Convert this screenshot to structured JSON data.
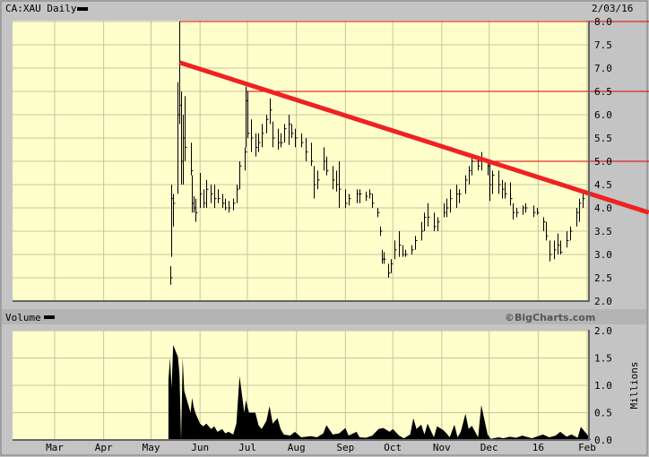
{
  "header": {
    "symbol_title": "CA:XAU Daily",
    "date": "2/03/16"
  },
  "volume_header": {
    "label": "Volume",
    "brand": "©BigCharts.com"
  },
  "colors": {
    "plot_bg": "#ffffcc",
    "grid": "#c8c49a",
    "bars": "#000000",
    "trendline": "#ee2222",
    "level_lines": "#dd0000",
    "panel_bg": "#c4c4c4",
    "band_bg": "#b4b4b4"
  },
  "chart_data": [
    {
      "type": "ohlc-bar",
      "title": "CA:XAU Daily",
      "x_axis": {
        "type": "date",
        "range": [
          "2015-02-03",
          "2016-02-03"
        ],
        "tick_labels": [
          {
            "date": "2015-03-01",
            "label": "Mar"
          },
          {
            "date": "2015-04-01",
            "label": "Apr"
          },
          {
            "date": "2015-05-01",
            "label": "May"
          },
          {
            "date": "2015-06-01",
            "label": "Jun"
          },
          {
            "date": "2015-07-01",
            "label": "Jul"
          },
          {
            "date": "2015-08-01",
            "label": "Aug"
          },
          {
            "date": "2015-09-01",
            "label": "Sep"
          },
          {
            "date": "2015-10-01",
            "label": "Oct"
          },
          {
            "date": "2015-11-01",
            "label": "Nov"
          },
          {
            "date": "2015-12-01",
            "label": "Dec"
          },
          {
            "date": "2016-01-01",
            "label": "16"
          },
          {
            "date": "2016-02-01",
            "label": "Feb"
          }
        ]
      },
      "y_axis": {
        "range": [
          2.0,
          8.0
        ],
        "ticks": [
          "2.0",
          "2.5",
          "3.0",
          "3.5",
          "4.0",
          "4.5",
          "5.0",
          "5.5",
          "6.0",
          "6.5",
          "7.0",
          "7.5",
          "8.0"
        ],
        "position": "right"
      },
      "grid": true,
      "bar_fields": [
        "date",
        "high",
        "low",
        "close"
      ],
      "bars": [
        [
          "2015-05-13",
          2.75,
          2.35,
          2.5
        ],
        [
          "2015-05-14",
          4.5,
          2.95,
          4.2
        ],
        [
          "2015-05-15",
          4.3,
          3.6,
          4.1
        ],
        [
          "2015-05-18",
          6.7,
          4.3,
          6.0
        ],
        [
          "2015-05-19",
          8.0,
          5.8,
          6.2
        ],
        [
          "2015-05-20",
          6.5,
          4.5,
          5.0
        ],
        [
          "2015-05-21",
          6.0,
          4.5,
          5.5
        ],
        [
          "2015-05-22",
          6.4,
          5.0,
          5.3
        ],
        [
          "2015-05-26",
          5.4,
          4.7,
          4.8
        ],
        [
          "2015-05-27",
          4.7,
          3.9,
          4.1
        ],
        [
          "2015-05-28",
          4.25,
          3.9,
          4.0
        ],
        [
          "2015-05-29",
          4.2,
          3.7,
          3.9
        ],
        [
          "2015-06-01",
          4.75,
          4.0,
          4.3
        ],
        [
          "2015-06-03",
          4.4,
          4.0,
          4.1
        ],
        [
          "2015-06-05",
          4.6,
          4.0,
          4.4
        ],
        [
          "2015-06-08",
          4.5,
          4.1,
          4.3
        ],
        [
          "2015-06-10",
          4.5,
          4.0,
          4.2
        ],
        [
          "2015-06-12",
          4.4,
          4.1,
          4.2
        ],
        [
          "2015-06-15",
          4.3,
          4.0,
          4.1
        ],
        [
          "2015-06-17",
          4.2,
          3.95,
          4.0
        ],
        [
          "2015-06-19",
          4.15,
          3.9,
          4.0
        ],
        [
          "2015-06-22",
          4.2,
          3.95,
          4.1
        ],
        [
          "2015-06-24",
          4.5,
          4.1,
          4.4
        ],
        [
          "2015-06-26",
          5.0,
          4.4,
          4.9
        ],
        [
          "2015-06-29",
          5.3,
          4.8,
          5.2
        ],
        [
          "2015-06-30",
          6.6,
          5.3,
          6.3
        ],
        [
          "2015-07-01",
          6.5,
          5.5,
          5.6
        ],
        [
          "2015-07-03",
          5.9,
          5.2,
          5.5
        ],
        [
          "2015-07-06",
          5.6,
          5.1,
          5.3
        ],
        [
          "2015-07-08",
          5.6,
          5.2,
          5.4
        ],
        [
          "2015-07-10",
          5.8,
          5.3,
          5.6
        ],
        [
          "2015-07-13",
          6.0,
          5.6,
          5.9
        ],
        [
          "2015-07-15",
          6.35,
          5.8,
          6.1
        ],
        [
          "2015-07-17",
          5.85,
          5.3,
          5.5
        ],
        [
          "2015-07-20",
          5.7,
          5.25,
          5.4
        ],
        [
          "2015-07-22",
          5.6,
          5.3,
          5.4
        ],
        [
          "2015-07-24",
          5.8,
          5.4,
          5.7
        ],
        [
          "2015-07-27",
          6.0,
          5.35,
          5.8
        ],
        [
          "2015-07-29",
          5.8,
          5.5,
          5.6
        ],
        [
          "2015-07-31",
          5.7,
          5.3,
          5.5
        ],
        [
          "2015-08-04",
          5.6,
          5.3,
          5.4
        ],
        [
          "2015-08-07",
          5.5,
          5.0,
          5.2
        ],
        [
          "2015-08-10",
          5.4,
          4.9,
          5.0
        ],
        [
          "2015-08-12",
          4.9,
          4.2,
          4.5
        ],
        [
          "2015-08-14",
          4.8,
          4.4,
          4.6
        ],
        [
          "2015-08-18",
          5.3,
          4.8,
          5.0
        ],
        [
          "2015-08-20",
          5.1,
          4.7,
          4.8
        ],
        [
          "2015-08-24",
          4.9,
          4.4,
          4.6
        ],
        [
          "2015-08-26",
          4.8,
          4.35,
          4.5
        ],
        [
          "2015-08-28",
          5.0,
          4.0,
          4.4
        ],
        [
          "2015-09-01",
          4.4,
          4.0,
          4.1
        ],
        [
          "2015-09-03",
          4.3,
          4.05,
          4.2
        ],
        [
          "2015-09-08",
          4.4,
          4.1,
          4.3
        ],
        [
          "2015-09-10",
          4.4,
          4.1,
          4.3
        ],
        [
          "2015-09-14",
          4.35,
          4.15,
          4.25
        ],
        [
          "2015-09-16",
          4.4,
          4.2,
          4.3
        ],
        [
          "2015-09-18",
          4.3,
          4.0,
          4.1
        ],
        [
          "2015-09-21",
          4.0,
          3.8,
          3.9
        ],
        [
          "2015-09-23",
          3.6,
          3.4,
          3.5
        ],
        [
          "2015-09-24",
          3.1,
          2.8,
          2.9
        ],
        [
          "2015-09-25",
          3.05,
          2.8,
          2.9
        ],
        [
          "2015-09-28",
          2.8,
          2.5,
          2.6
        ],
        [
          "2015-09-30",
          2.9,
          2.6,
          2.8
        ],
        [
          "2015-10-02",
          3.3,
          2.9,
          3.1
        ],
        [
          "2015-10-05",
          3.5,
          2.95,
          3.2
        ],
        [
          "2015-10-07",
          3.2,
          2.95,
          3.0
        ],
        [
          "2015-10-09",
          3.1,
          2.95,
          3.0
        ],
        [
          "2015-10-13",
          3.2,
          3.0,
          3.1
        ],
        [
          "2015-10-15",
          3.4,
          3.1,
          3.3
        ],
        [
          "2015-10-19",
          3.7,
          3.3,
          3.5
        ],
        [
          "2015-10-21",
          3.9,
          3.5,
          3.8
        ],
        [
          "2015-10-23",
          4.1,
          3.6,
          3.8
        ],
        [
          "2015-10-27",
          3.9,
          3.5,
          3.6
        ],
        [
          "2015-10-29",
          3.8,
          3.5,
          3.7
        ],
        [
          "2015-11-02",
          4.1,
          3.8,
          3.9
        ],
        [
          "2015-11-04",
          4.2,
          3.8,
          4.0
        ],
        [
          "2015-11-06",
          4.4,
          3.9,
          4.2
        ],
        [
          "2015-11-10",
          4.5,
          4.0,
          4.3
        ],
        [
          "2015-11-12",
          4.4,
          4.1,
          4.3
        ],
        [
          "2015-11-16",
          4.7,
          4.3,
          4.6
        ],
        [
          "2015-11-18",
          4.9,
          4.5,
          4.8
        ],
        [
          "2015-11-20",
          5.15,
          4.7,
          5.0
        ],
        [
          "2015-11-24",
          5.1,
          4.8,
          4.9
        ],
        [
          "2015-11-26",
          5.2,
          4.8,
          5.0
        ],
        [
          "2015-11-30",
          5.0,
          4.7,
          4.9
        ],
        [
          "2015-12-01",
          4.95,
          4.15,
          4.5
        ],
        [
          "2015-12-03",
          4.8,
          4.3,
          4.7
        ],
        [
          "2015-12-07",
          4.8,
          4.3,
          4.5
        ],
        [
          "2015-12-09",
          4.6,
          4.2,
          4.4
        ],
        [
          "2015-12-11",
          4.55,
          4.2,
          4.3
        ],
        [
          "2015-12-14",
          4.55,
          4.05,
          4.2
        ],
        [
          "2015-12-16",
          4.1,
          3.75,
          3.9
        ],
        [
          "2015-12-18",
          4.0,
          3.8,
          3.9
        ],
        [
          "2015-12-22",
          4.05,
          3.85,
          4.0
        ],
        [
          "2015-12-24",
          4.1,
          3.9,
          4.0
        ],
        [
          "2015-12-29",
          4.05,
          3.8,
          3.9
        ],
        [
          "2015-12-31",
          4.0,
          3.85,
          3.9
        ],
        [
          "2016-01-04",
          3.8,
          3.5,
          3.7
        ],
        [
          "2016-01-06",
          3.7,
          3.3,
          3.4
        ],
        [
          "2016-01-08",
          3.3,
          2.85,
          3.0
        ],
        [
          "2016-01-11",
          3.3,
          2.9,
          3.1
        ],
        [
          "2016-01-13",
          3.45,
          3.0,
          3.2
        ],
        [
          "2016-01-15",
          3.3,
          3.0,
          3.05
        ],
        [
          "2016-01-19",
          3.5,
          3.15,
          3.3
        ],
        [
          "2016-01-21",
          3.6,
          3.3,
          3.5
        ],
        [
          "2016-01-25",
          4.0,
          3.6,
          3.9
        ],
        [
          "2016-01-27",
          4.2,
          3.7,
          4.1
        ],
        [
          "2016-01-29",
          4.3,
          4.0,
          4.2
        ],
        [
          "2016-02-02",
          4.35,
          4.1,
          4.3
        ]
      ],
      "annotations": {
        "trendline": {
          "from": [
            "2015-05-19",
            7.12
          ],
          "to": [
            "2016-03-11",
            3.9
          ]
        },
        "horizontal_levels": [
          {
            "value": 8.0,
            "from": "2015-05-19"
          },
          {
            "value": 6.5,
            "from": "2015-06-30"
          },
          {
            "value": 5.0,
            "from": "2015-11-21"
          }
        ]
      }
    },
    {
      "type": "area",
      "title": "Volume",
      "y_axis": {
        "range": [
          0.0,
          2.0
        ],
        "ticks": [
          "0.0",
          "0.5",
          "1.0",
          "1.5",
          "2.0"
        ],
        "label": "Millions",
        "position": "right"
      },
      "grid": true,
      "point_fields": [
        "date",
        "millions"
      ],
      "points": [
        [
          "2015-05-12",
          1.1
        ],
        [
          "2015-05-13",
          1.5
        ],
        [
          "2015-05-14",
          0.95
        ],
        [
          "2015-05-15",
          1.74
        ],
        [
          "2015-05-18",
          1.52
        ],
        [
          "2015-05-19",
          1.2
        ],
        [
          "2015-05-20",
          0.0
        ],
        [
          "2015-05-21",
          1.5
        ],
        [
          "2015-05-22",
          0.9
        ],
        [
          "2015-05-26",
          0.5
        ],
        [
          "2015-05-27",
          0.77
        ],
        [
          "2015-05-28",
          0.6
        ],
        [
          "2015-05-29",
          0.5
        ],
        [
          "2015-06-01",
          0.3
        ],
        [
          "2015-06-03",
          0.25
        ],
        [
          "2015-06-05",
          0.3
        ],
        [
          "2015-06-08",
          0.2
        ],
        [
          "2015-06-10",
          0.25
        ],
        [
          "2015-06-12",
          0.15
        ],
        [
          "2015-06-15",
          0.2
        ],
        [
          "2015-06-17",
          0.12
        ],
        [
          "2015-06-19",
          0.15
        ],
        [
          "2015-06-22",
          0.1
        ],
        [
          "2015-06-24",
          0.3
        ],
        [
          "2015-06-26",
          1.17
        ],
        [
          "2015-06-29",
          0.5
        ],
        [
          "2015-06-30",
          0.73
        ],
        [
          "2015-07-02",
          0.5
        ],
        [
          "2015-07-06",
          0.5
        ],
        [
          "2015-07-08",
          0.27
        ],
        [
          "2015-07-10",
          0.2
        ],
        [
          "2015-07-13",
          0.35
        ],
        [
          "2015-07-15",
          0.62
        ],
        [
          "2015-07-17",
          0.3
        ],
        [
          "2015-07-20",
          0.4
        ],
        [
          "2015-07-22",
          0.2
        ],
        [
          "2015-07-24",
          0.1
        ],
        [
          "2015-07-28",
          0.08
        ],
        [
          "2015-07-31",
          0.15
        ],
        [
          "2015-08-04",
          0.05
        ],
        [
          "2015-08-10",
          0.07
        ],
        [
          "2015-08-14",
          0.05
        ],
        [
          "2015-08-18",
          0.12
        ],
        [
          "2015-08-20",
          0.27
        ],
        [
          "2015-08-24",
          0.1
        ],
        [
          "2015-08-28",
          0.12
        ],
        [
          "2015-09-01",
          0.22
        ],
        [
          "2015-09-03",
          0.08
        ],
        [
          "2015-09-08",
          0.15
        ],
        [
          "2015-09-10",
          0.05
        ],
        [
          "2015-09-14",
          0.04
        ],
        [
          "2015-09-18",
          0.08
        ],
        [
          "2015-09-22",
          0.2
        ],
        [
          "2015-09-25",
          0.22
        ],
        [
          "2015-09-29",
          0.15
        ],
        [
          "2015-10-01",
          0.2
        ],
        [
          "2015-10-05",
          0.08
        ],
        [
          "2015-10-08",
          0.03
        ],
        [
          "2015-10-12",
          0.1
        ],
        [
          "2015-10-14",
          0.4
        ],
        [
          "2015-10-16",
          0.2
        ],
        [
          "2015-10-19",
          0.28
        ],
        [
          "2015-10-21",
          0.1
        ],
        [
          "2015-10-23",
          0.3
        ],
        [
          "2015-10-27",
          0.05
        ],
        [
          "2015-10-29",
          0.25
        ],
        [
          "2015-11-02",
          0.18
        ],
        [
          "2015-11-04",
          0.12
        ],
        [
          "2015-11-06",
          0.05
        ],
        [
          "2015-11-09",
          0.28
        ],
        [
          "2015-11-11",
          0.05
        ],
        [
          "2015-11-13",
          0.15
        ],
        [
          "2015-11-16",
          0.48
        ],
        [
          "2015-11-18",
          0.2
        ],
        [
          "2015-11-20",
          0.26
        ],
        [
          "2015-11-24",
          0.05
        ],
        [
          "2015-11-26",
          0.64
        ],
        [
          "2015-11-30",
          0.1
        ],
        [
          "2015-12-02",
          0.02
        ],
        [
          "2015-12-07",
          0.05
        ],
        [
          "2015-12-10",
          0.03
        ],
        [
          "2015-12-14",
          0.06
        ],
        [
          "2015-12-18",
          0.04
        ],
        [
          "2015-12-22",
          0.08
        ],
        [
          "2015-12-28",
          0.03
        ],
        [
          "2016-01-04",
          0.1
        ],
        [
          "2016-01-08",
          0.05
        ],
        [
          "2016-01-12",
          0.08
        ],
        [
          "2016-01-15",
          0.15
        ],
        [
          "2016-01-19",
          0.06
        ],
        [
          "2016-01-22",
          0.1
        ],
        [
          "2016-01-26",
          0.04
        ],
        [
          "2016-01-28",
          0.24
        ],
        [
          "2016-02-01",
          0.1
        ],
        [
          "2016-02-03",
          0.02
        ]
      ]
    }
  ]
}
